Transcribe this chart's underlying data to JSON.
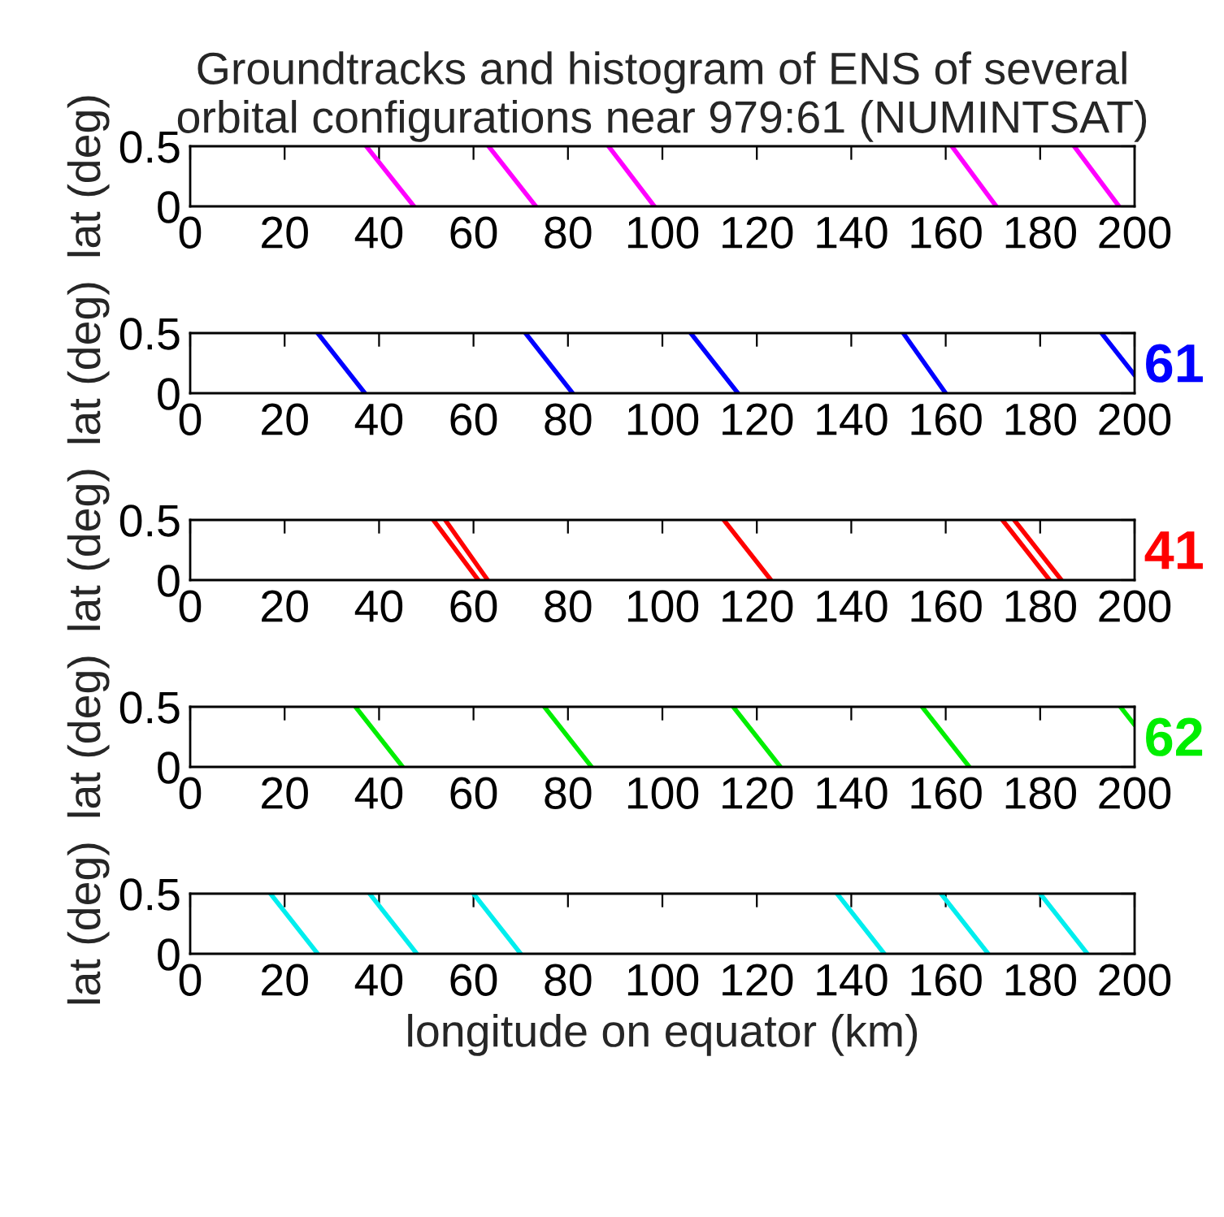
{
  "chart_data": [
    {
      "type": "line",
      "title": "Groundtracks and histogram of ENS of several\norbital configurations near 979:61 (NUMINTSAT)",
      "ylabel": "lat (deg)",
      "xlim": [
        0,
        200
      ],
      "xticks": [
        0,
        20,
        40,
        60,
        80,
        100,
        120,
        140,
        160,
        180,
        200
      ],
      "ylim": [
        0,
        0.5
      ],
      "yticks": [
        0,
        0.5
      ],
      "grid": false,
      "legend": false,
      "series": [
        {
          "color": "#ff00ff",
          "x": [
            37.3,
            47.4,
            null,
            63.2,
            73.2,
            null,
            88.6,
            98.3,
            null,
            161.3,
            170.7,
            null,
            187.2,
            196.7
          ],
          "values": [
            0.5,
            0,
            null,
            0.5,
            0,
            null,
            0.5,
            0,
            null,
            0.5,
            0,
            null,
            0.5,
            0
          ]
        }
      ]
    },
    {
      "type": "line",
      "ylabel": "lat (deg)",
      "annotations": [
        "61"
      ],
      "xlim": [
        0,
        200
      ],
      "xticks": [
        0,
        20,
        40,
        60,
        80,
        100,
        120,
        140,
        160,
        180,
        200
      ],
      "ylim": [
        0,
        0.5
      ],
      "yticks": [
        0,
        0.5
      ],
      "grid": false,
      "legend": false,
      "series": [
        {
          "color": "#0000ff",
          "x": [
            27,
            37,
            null,
            71,
            81,
            null,
            106,
            116,
            null,
            151,
            160,
            null,
            193,
            200
          ],
          "values": [
            0.5,
            0,
            null,
            0.5,
            0,
            null,
            0.5,
            0,
            null,
            0.5,
            0,
            null,
            0.5,
            0.15
          ]
        }
      ]
    },
    {
      "type": "line",
      "ylabel": "lat (deg)",
      "annotations": [
        "41"
      ],
      "xlim": [
        0,
        200
      ],
      "xticks": [
        0,
        20,
        40,
        60,
        80,
        100,
        120,
        140,
        160,
        180,
        200
      ],
      "ylim": [
        0,
        0.5
      ],
      "yticks": [
        0,
        0.5
      ],
      "grid": false,
      "legend": false,
      "series": [
        {
          "color": "#ff0000",
          "x": [
            51.5,
            61,
            null,
            54,
            63,
            null,
            113,
            123,
            null,
            172,
            182,
            null,
            174.5,
            184.5
          ],
          "values": [
            0.5,
            0,
            null,
            0.5,
            0,
            null,
            0.5,
            0,
            null,
            0.5,
            0,
            null,
            0.5,
            0
          ]
        }
      ]
    },
    {
      "type": "line",
      "ylabel": "lat (deg)",
      "annotations": [
        "62"
      ],
      "xlim": [
        0,
        200
      ],
      "xticks": [
        0,
        20,
        40,
        60,
        80,
        100,
        120,
        140,
        160,
        180,
        200
      ],
      "ylim": [
        0,
        0.5
      ],
      "yticks": [
        0,
        0.5
      ],
      "grid": false,
      "legend": false,
      "series": [
        {
          "color": "#00ee00",
          "x": [
            35,
            45,
            null,
            75,
            85,
            null,
            115,
            125,
            null,
            155,
            165,
            null,
            197,
            200
          ],
          "values": [
            0.5,
            0,
            null,
            0.5,
            0,
            null,
            0.5,
            0,
            null,
            0.5,
            0,
            null,
            0.5,
            0.35
          ]
        }
      ]
    },
    {
      "type": "line",
      "ylabel": "lat (deg)",
      "xlabel": "longitude on equator (km)",
      "xlim": [
        0,
        200
      ],
      "xticks": [
        0,
        20,
        40,
        60,
        80,
        100,
        120,
        140,
        160,
        180,
        200
      ],
      "ylim": [
        0,
        0.5
      ],
      "yticks": [
        0,
        0.5
      ],
      "grid": false,
      "legend": false,
      "series": [
        {
          "color": "#00eeee",
          "x": [
            17,
            27,
            null,
            38,
            48,
            null,
            60,
            70,
            null,
            137,
            147,
            null,
            159,
            169,
            null,
            180,
            190
          ],
          "values": [
            0.5,
            0,
            null,
            0.5,
            0,
            null,
            0.5,
            0,
            null,
            0.5,
            0,
            null,
            0.5,
            0,
            null,
            0.5,
            0
          ]
        }
      ]
    }
  ]
}
